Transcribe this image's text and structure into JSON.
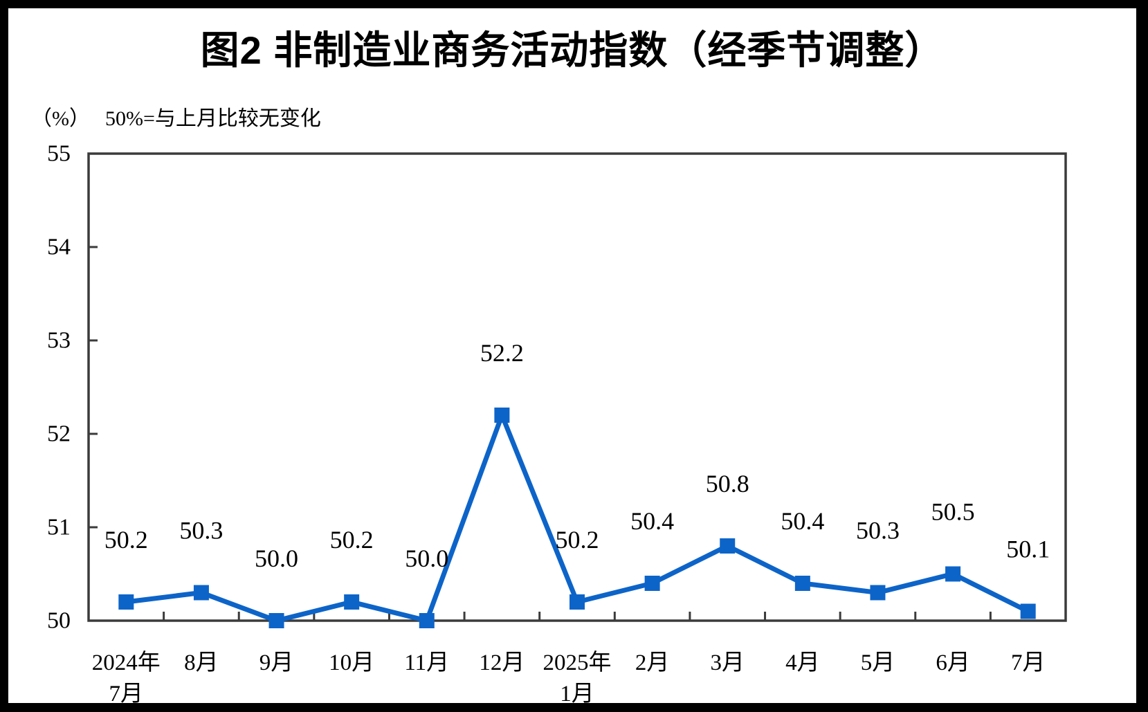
{
  "page": {
    "title": "图2 非制造业商务活动指数（经季节调整）",
    "unit_label": "（%）",
    "note_label": "50%=与上月比较无变化"
  },
  "chart_data": {
    "type": "line",
    "title": "图2 非制造业商务活动指数（经季节调整）",
    "unit": "（%）",
    "note": "50%=与上月比较无变化",
    "categories": [
      "2024年7月",
      "8月",
      "9月",
      "10月",
      "11月",
      "12月",
      "2025年1月",
      "2月",
      "3月",
      "4月",
      "5月",
      "6月",
      "7月"
    ],
    "category_display_lines": [
      [
        "2024年",
        "7月"
      ],
      [
        "8月"
      ],
      [
        "9月"
      ],
      [
        "10月"
      ],
      [
        "11月"
      ],
      [
        "12月"
      ],
      [
        "2025年",
        "1月"
      ],
      [
        "2月"
      ],
      [
        "3月"
      ],
      [
        "4月"
      ],
      [
        "5月"
      ],
      [
        "6月"
      ],
      [
        "7月"
      ]
    ],
    "values": [
      50.2,
      50.3,
      50.0,
      50.2,
      50.0,
      52.2,
      50.2,
      50.4,
      50.8,
      50.4,
      50.3,
      50.5,
      50.1
    ],
    "data_labels": [
      "50.2",
      "50.3",
      "50.0",
      "50.2",
      "50.0",
      "52.2",
      "50.2",
      "50.4",
      "50.8",
      "50.4",
      "50.3",
      "50.5",
      "50.1"
    ],
    "ylim": [
      50,
      55
    ],
    "yticks": [
      50,
      51,
      52,
      53,
      54,
      55
    ],
    "xlabel": "",
    "ylabel": "（%）",
    "grid": false,
    "legend_position": "none",
    "line_color": "#0D64C8",
    "marker_style": "square",
    "axis_color": "#3B3B3B",
    "label_color": "#000000"
  }
}
